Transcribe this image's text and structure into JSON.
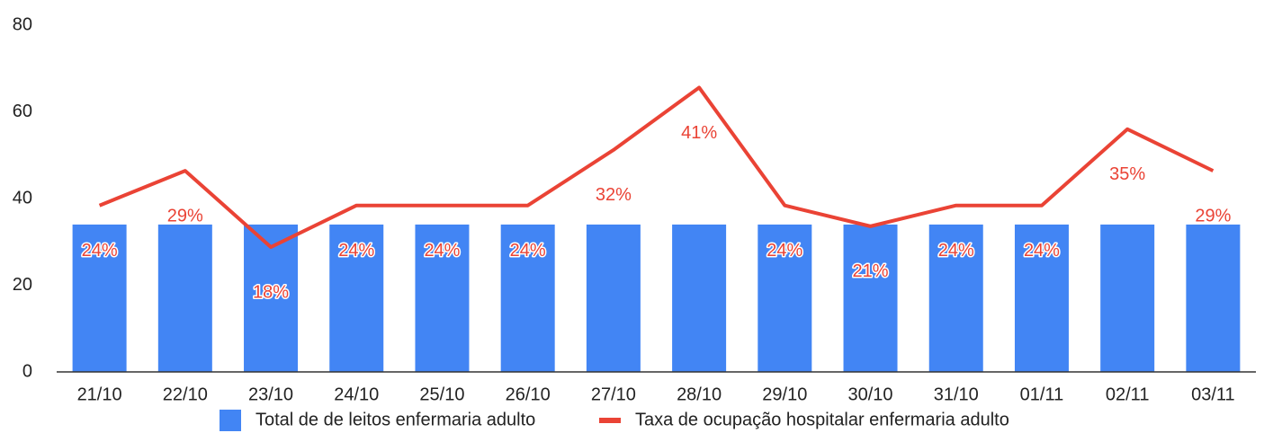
{
  "chart_data": {
    "type": "bar+line",
    "categories": [
      "21/10",
      "22/10",
      "23/10",
      "24/10",
      "25/10",
      "26/10",
      "27/10",
      "28/10",
      "29/10",
      "30/10",
      "31/10",
      "01/11",
      "02/11",
      "03/11"
    ],
    "series": [
      {
        "name": "Total de de leitos enfermaria adulto",
        "color": "#4285f4",
        "type": "bar",
        "values": [
          34,
          34,
          34,
          34,
          34,
          34,
          34,
          34,
          34,
          34,
          34,
          34,
          34,
          34
        ]
      },
      {
        "name": "Taxa de ocupação hospitalar enfermaria adulto",
        "color": "#ea4335",
        "type": "line",
        "axis": "y2",
        "values": [
          24,
          29,
          18,
          24,
          24,
          24,
          32,
          41,
          24,
          21,
          24,
          24,
          35,
          29
        ],
        "value_labels": [
          "24%",
          "29%",
          "18%",
          "24%",
          "24%",
          "24%",
          "32%",
          "41%",
          "24%",
          "21%",
          "24%",
          "24%",
          "35%",
          "29%"
        ]
      }
    ],
    "ylim": [
      0,
      80
    ],
    "yticks": [
      0,
      20,
      40,
      60,
      80
    ],
    "y2lim": [
      0,
      50
    ],
    "grid": false,
    "legend": "bottom"
  }
}
